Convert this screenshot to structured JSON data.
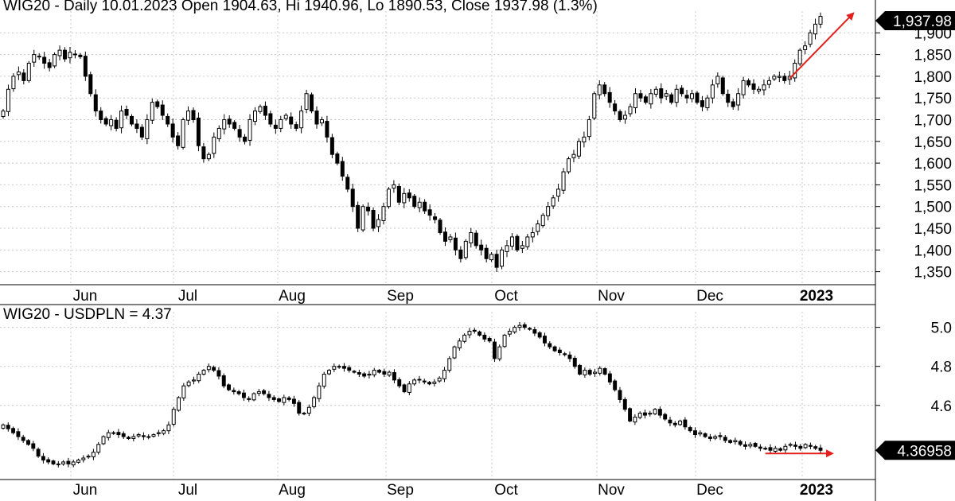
{
  "chart_data": [
    {
      "type": "candlestick",
      "title": "WIG20 - Daily 10.01.2023 Open 1904.63, Hi 1940.96, Lo 1890.53, Close 1937.98 (1.3%)",
      "x_months": [
        "Jun",
        "Jul",
        "Aug",
        "Sep",
        "Oct",
        "Nov",
        "Dec",
        "2023"
      ],
      "y_ticks": [
        {
          "value": 1350,
          "label": "1,350"
        },
        {
          "value": 1400,
          "label": "1,400"
        },
        {
          "value": 1450,
          "label": "1,450"
        },
        {
          "value": 1500,
          "label": "1,500"
        },
        {
          "value": 1550,
          "label": "1,550"
        },
        {
          "value": 1600,
          "label": "1,600"
        },
        {
          "value": 1650,
          "label": "1,650"
        },
        {
          "value": 1700,
          "label": "1,700"
        },
        {
          "value": 1750,
          "label": "1,750"
        },
        {
          "value": 1800,
          "label": "1,800"
        },
        {
          "value": 1850,
          "label": "1,850"
        },
        {
          "value": 1900,
          "label": "1,900"
        }
      ],
      "ylim": [
        1320,
        1950
      ],
      "last_value_label": "1,937.98",
      "last_value": 1937.98,
      "grid": true,
      "closes": [
        1720,
        1770,
        1800,
        1810,
        1790,
        1830,
        1850,
        1845,
        1830,
        1820,
        1850,
        1860,
        1840,
        1855,
        1850,
        1845,
        1800,
        1760,
        1720,
        1700,
        1690,
        1700,
        1680,
        1720,
        1710,
        1690,
        1680,
        1660,
        1700,
        1740,
        1730,
        1710,
        1690,
        1660,
        1640,
        1700,
        1720,
        1700,
        1640,
        1610,
        1620,
        1660,
        1680,
        1700,
        1690,
        1680,
        1660,
        1650,
        1700,
        1720,
        1730,
        1710,
        1690,
        1680,
        1700,
        1710,
        1690,
        1680,
        1720,
        1760,
        1720,
        1690,
        1700,
        1660,
        1620,
        1600,
        1570,
        1540,
        1500,
        1450,
        1500,
        1490,
        1450,
        1470,
        1500,
        1540,
        1550,
        1510,
        1530,
        1520,
        1500,
        1510,
        1490,
        1480,
        1470,
        1440,
        1420,
        1430,
        1400,
        1380,
        1420,
        1440,
        1410,
        1400,
        1380,
        1390,
        1360,
        1400,
        1410,
        1430,
        1400,
        1410,
        1430,
        1440,
        1460,
        1480,
        1500,
        1520,
        1540,
        1580,
        1610,
        1620,
        1650,
        1660,
        1700,
        1760,
        1780,
        1760,
        1740,
        1720,
        1700,
        1710,
        1730,
        1760,
        1750,
        1740,
        1760,
        1770,
        1750,
        1760,
        1740,
        1770,
        1760,
        1750,
        1760,
        1740,
        1730,
        1750,
        1780,
        1800,
        1760,
        1740,
        1730,
        1760,
        1790,
        1780,
        1770,
        1770,
        1780,
        1790,
        1800,
        1800,
        1790,
        1800,
        1830,
        1860,
        1870,
        1900,
        1920,
        1937.98
      ],
      "arrow": {
        "from_index": 153,
        "from_value": 1795,
        "to_index": 166,
        "to_value": 1945,
        "color": "#e3201b"
      }
    },
    {
      "type": "candlestick",
      "title": "WIG20 - USDPLN = 4.37",
      "x_months": [
        "Jun",
        "Jul",
        "Aug",
        "Sep",
        "Oct",
        "Nov",
        "Dec",
        "2023"
      ],
      "y_ticks": [
        {
          "value": 4.6,
          "label": "4.6"
        },
        {
          "value": 4.8,
          "label": "4.8"
        },
        {
          "value": 5.0,
          "label": "5.0"
        }
      ],
      "ylim": [
        4.22,
        5.08
      ],
      "last_value_label": "4.36958",
      "last_value": 4.36958,
      "grid": true,
      "closes": [
        4.5,
        4.48,
        4.46,
        4.44,
        4.42,
        4.4,
        4.38,
        4.34,
        4.32,
        4.31,
        4.3,
        4.3,
        4.31,
        4.3,
        4.31,
        4.32,
        4.33,
        4.34,
        4.36,
        4.4,
        4.44,
        4.46,
        4.46,
        4.45,
        4.44,
        4.43,
        4.44,
        4.45,
        4.44,
        4.44,
        4.45,
        4.46,
        4.47,
        4.5,
        4.58,
        4.64,
        4.7,
        4.72,
        4.73,
        4.76,
        4.78,
        4.8,
        4.78,
        4.75,
        4.7,
        4.68,
        4.67,
        4.66,
        4.64,
        4.63,
        4.66,
        4.67,
        4.66,
        4.64,
        4.63,
        4.62,
        4.64,
        4.63,
        4.61,
        4.56,
        4.56,
        4.59,
        4.64,
        4.7,
        4.76,
        4.78,
        4.8,
        4.8,
        4.79,
        4.78,
        4.77,
        4.76,
        4.75,
        4.76,
        4.78,
        4.77,
        4.76,
        4.77,
        4.73,
        4.7,
        4.67,
        4.71,
        4.73,
        4.73,
        4.72,
        4.71,
        4.72,
        4.74,
        4.78,
        4.84,
        4.9,
        4.93,
        4.96,
        4.98,
        4.98,
        4.96,
        4.94,
        4.93,
        4.84,
        4.9,
        4.96,
        4.98,
        5.0,
        5.01,
        5.0,
        4.99,
        4.97,
        4.95,
        4.92,
        4.9,
        4.88,
        4.87,
        4.86,
        4.84,
        4.8,
        4.76,
        4.78,
        4.76,
        4.77,
        4.79,
        4.76,
        4.72,
        4.68,
        4.63,
        4.58,
        4.52,
        4.54,
        4.56,
        4.55,
        4.56,
        4.58,
        4.55,
        4.53,
        4.51,
        4.5,
        4.52,
        4.49,
        4.47,
        4.45,
        4.46,
        4.44,
        4.43,
        4.44,
        4.44,
        4.42,
        4.41,
        4.42,
        4.4,
        4.39,
        4.4,
        4.39,
        4.38,
        4.38,
        4.37,
        4.38,
        4.37,
        4.39,
        4.4,
        4.39,
        4.38,
        4.4,
        4.39,
        4.38,
        4.37
      ],
      "arrow": {
        "from_index": 152,
        "from_value": 4.37,
        "to_index": 166,
        "to_value": 4.37,
        "color": "#e3201b"
      }
    }
  ],
  "footer_note": ""
}
